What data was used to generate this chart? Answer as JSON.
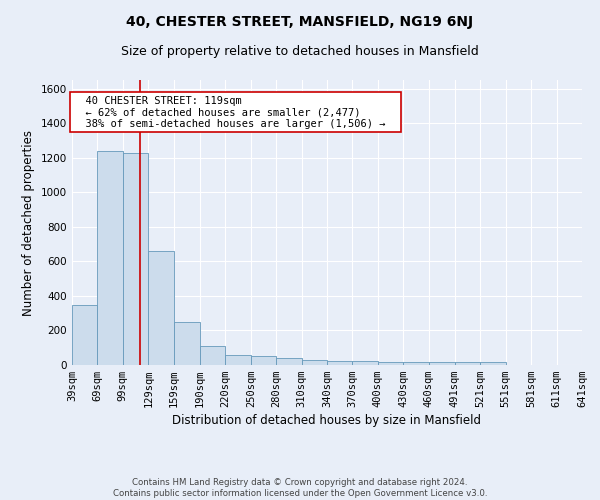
{
  "title": "40, CHESTER STREET, MANSFIELD, NG19 6NJ",
  "subtitle": "Size of property relative to detached houses in Mansfield",
  "xlabel": "Distribution of detached houses by size in Mansfield",
  "ylabel": "Number of detached properties",
  "footnote": "Contains HM Land Registry data © Crown copyright and database right 2024.\nContains public sector information licensed under the Open Government Licence v3.0.",
  "bin_edges": [
    39,
    69,
    99,
    129,
    159,
    190,
    220,
    250,
    280,
    310,
    340,
    370,
    400,
    430,
    460,
    491,
    521,
    551,
    581,
    611,
    641
  ],
  "bar_heights": [
    350,
    1240,
    1230,
    660,
    250,
    110,
    60,
    50,
    40,
    30,
    25,
    25,
    20,
    20,
    20,
    20,
    20,
    0,
    0,
    0
  ],
  "bar_color": "#ccdcec",
  "bar_edge_color": "#6699bb",
  "property_line_x": 119,
  "property_line_color": "#cc0000",
  "annotation_text": "  40 CHESTER STREET: 119sqm  \n  ← 62% of detached houses are smaller (2,477)  \n  38% of semi-detached houses are larger (1,506) →  ",
  "annotation_box_color": "#ffffff",
  "annotation_box_edge_color": "#cc0000",
  "ylim": [
    0,
    1650
  ],
  "yticks": [
    0,
    200,
    400,
    600,
    800,
    1000,
    1200,
    1400,
    1600
  ],
  "bg_color": "#e8eef8",
  "plot_bg_color": "#e8eef8",
  "grid_color": "#ffffff",
  "title_fontsize": 10,
  "subtitle_fontsize": 9,
  "axis_label_fontsize": 8.5,
  "tick_fontsize": 7.5,
  "annotation_fontsize": 7.5
}
